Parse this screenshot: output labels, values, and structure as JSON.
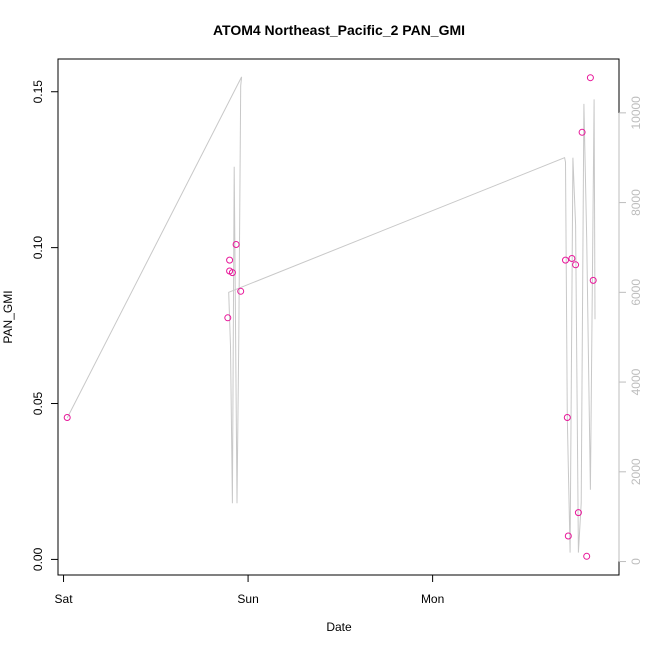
{
  "chart_data": {
    "type": "scatter",
    "title": "ATOM4 Northeast_Pacific_2 PAN_GMI",
    "xlabel": "Date",
    "ylabel": "PAN_GMI",
    "x_ticks": [
      "Sat",
      "Sun",
      "Mon"
    ],
    "y_ticks": [
      "0.00",
      "0.05",
      "0.10",
      "0.15"
    ],
    "y2_ticks": [
      "0",
      "2000",
      "4000",
      "6000",
      "8000",
      "10000"
    ],
    "x_unit": "day",
    "xlim": [
      -0.03,
      3.01
    ],
    "ylim": [
      -0.005,
      0.1605
    ],
    "y2lim": [
      -300,
      11200
    ],
    "grid": false,
    "colors": {
      "points": "#e8179a",
      "line": "#c8c8c8",
      "axis": "#000000",
      "right_axis": "#bdbdbd"
    },
    "series": [
      {
        "kind": "points",
        "axis": "left",
        "x": [
          0.02,
          0.89,
          0.9,
          0.9,
          0.915,
          0.935,
          0.96,
          2.72,
          2.73,
          2.735,
          2.755,
          2.775,
          2.79,
          2.81,
          2.835,
          2.855,
          2.87
        ],
        "y": [
          0.0455,
          0.0775,
          0.0925,
          0.096,
          0.092,
          0.101,
          0.086,
          0.096,
          0.0455,
          0.0075,
          0.0965,
          0.0945,
          0.015,
          0.137,
          0.001,
          0.1545,
          0.0895
        ]
      },
      {
        "kind": "line",
        "axis": "right",
        "x": [
          0.02,
          0.965,
          0.96,
          0.95,
          0.94,
          0.925,
          0.915,
          0.905,
          0.895,
          2.715,
          2.72,
          2.73,
          2.745,
          2.76,
          2.775,
          2.79,
          2.805,
          2.82,
          2.835,
          2.855,
          2.875,
          2.88
        ],
        "y": [
          3200,
          10800,
          10600,
          5000,
          1300,
          8800,
          1300,
          4800,
          6000,
          9000,
          8900,
          3200,
          200,
          9000,
          7500,
          200,
          1300,
          10200,
          7200,
          1600,
          10300,
          5400
        ]
      }
    ]
  }
}
